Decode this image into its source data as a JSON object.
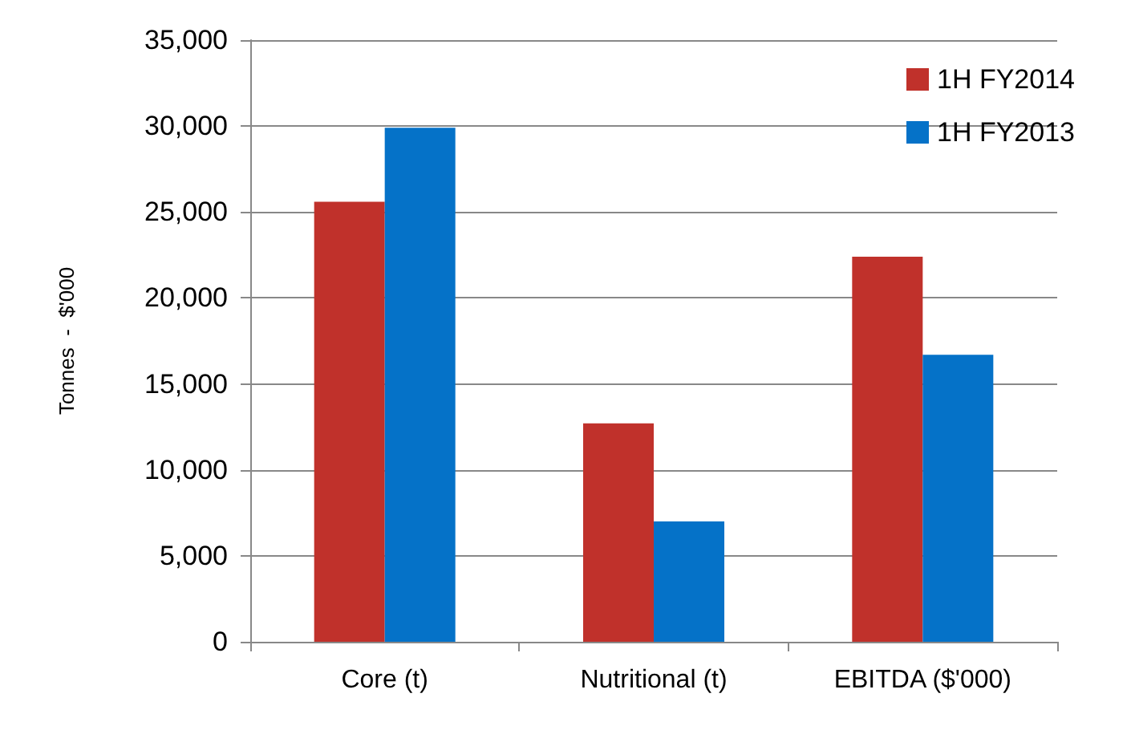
{
  "chart_data": {
    "type": "bar",
    "ylabel": "Tonnes  -  $'000",
    "categories": [
      "Core (t)",
      "Nutritional (t)",
      "EBITDA ($'000)"
    ],
    "series": [
      {
        "name": "1H FY2014",
        "color": "#c0312b",
        "values": [
          25600,
          12700,
          22400
        ]
      },
      {
        "name": "1H FY2013",
        "color": "#0572c8",
        "values": [
          29900,
          7000,
          16700
        ]
      }
    ],
    "ylim": [
      0,
      35000
    ],
    "yticks": [
      0,
      {
        "value": 5000,
        "label": "5,000"
      },
      {
        "value": 10000,
        "label": "10,000"
      },
      {
        "value": 15000,
        "label": "15,000"
      },
      {
        "value": 20000,
        "label": "20,000"
      },
      {
        "value": 25000,
        "label": "25,000"
      },
      {
        "value": 30000,
        "label": "30,000"
      },
      {
        "value": 35000,
        "label": "35,000"
      }
    ],
    "grid": "y",
    "legend": "top right"
  }
}
